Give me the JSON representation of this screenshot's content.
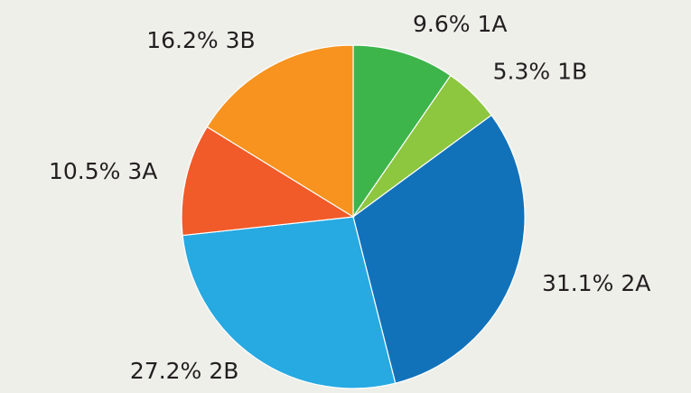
{
  "chart_data": {
    "type": "pie",
    "categories": [
      "1A",
      "1B",
      "2A",
      "2B",
      "3A",
      "3B"
    ],
    "values": [
      9.6,
      5.3,
      31.1,
      27.2,
      10.5,
      16.2
    ],
    "value_labels": [
      "9.6%",
      "5.3%",
      "31.1%",
      "27.2%",
      "10.5%",
      "16.2%"
    ],
    "colors": [
      "#3db54a",
      "#8dc63f",
      "#1172ba",
      "#27a9e1",
      "#f15a29",
      "#f7931e"
    ]
  }
}
